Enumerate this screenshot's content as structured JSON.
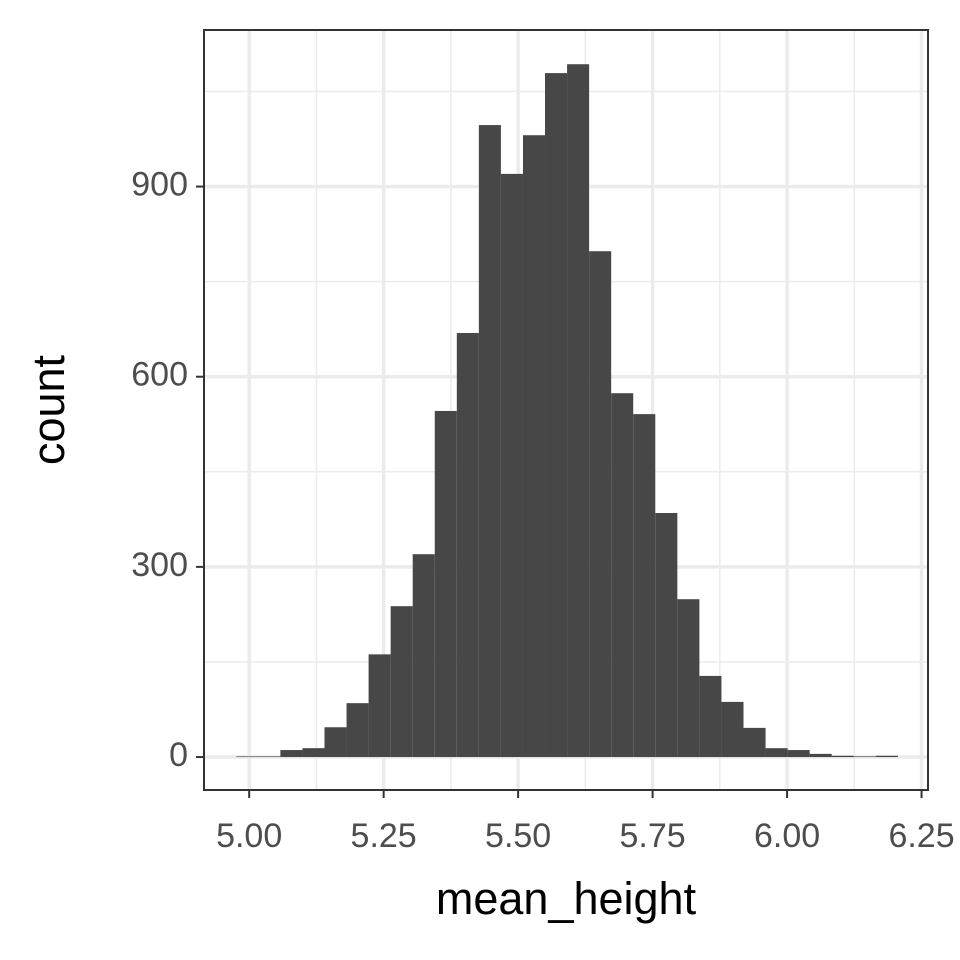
{
  "chart_data": {
    "type": "histogram",
    "xlabel": "mean_height",
    "ylabel": "count",
    "bins": [
      4.976,
      5.017,
      5.058,
      5.099,
      5.14,
      5.181,
      5.222,
      5.263,
      5.304,
      5.345,
      5.386,
      5.427,
      5.468,
      5.509,
      5.55,
      5.591,
      5.632,
      5.673,
      5.714,
      5.755,
      5.796,
      5.837,
      5.878,
      5.919,
      5.96,
      6.001,
      6.042,
      6.083,
      6.124,
      6.165,
      6.206
    ],
    "counts": [
      1,
      1,
      11,
      14,
      47,
      85,
      162,
      238,
      320,
      546,
      669,
      997,
      920,
      981,
      1079,
      1093,
      798,
      574,
      541,
      385,
      249,
      128,
      87,
      46,
      14,
      11,
      5,
      2,
      1,
      2
    ],
    "color": "#474747",
    "xlim": [
      4.916,
      6.262
    ],
    "ylim": [
      -52,
      1147
    ],
    "xticks": [
      {
        "value": 5,
        "label": "5.00"
      },
      {
        "value": 5.25,
        "label": "5.25"
      },
      {
        "value": 5.5,
        "label": "5.50"
      },
      {
        "value": 5.75,
        "label": "5.75"
      },
      {
        "value": 6,
        "label": "6.00"
      },
      {
        "value": 6.25,
        "label": "6.25"
      }
    ],
    "yticks": [
      0,
      300,
      600,
      900
    ],
    "grid": true
  }
}
